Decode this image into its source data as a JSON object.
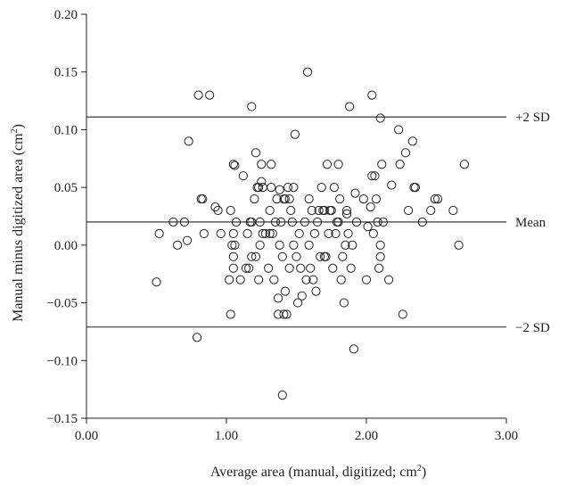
{
  "chart_data": {
    "type": "scatter",
    "xlabel": {
      "pre": "Average area (manual, digitized; cm",
      "sup": "2",
      "post": ")"
    },
    "ylabel": {
      "pre": "Manual minus digitized area (cm",
      "sup": "2",
      "post": ")"
    },
    "xlim": [
      0.0,
      3.0
    ],
    "ylim": [
      -0.15,
      0.2
    ],
    "x_ticks": [
      0.0,
      1.0,
      2.0,
      3.0
    ],
    "x_tick_labels": [
      "0.00",
      "1.00",
      "2.00",
      "3.00"
    ],
    "y_ticks": [
      0.2,
      0.15,
      0.1,
      0.05,
      0.0,
      -0.05,
      -0.1,
      -0.15
    ],
    "y_tick_labels": [
      "0.20",
      "0.15",
      "0.10",
      "0.05",
      "0.00",
      "−0.05",
      "−0.10",
      "−0.15"
    ],
    "grid": false,
    "reference_lines": [
      {
        "label": "+2 SD",
        "y": 0.111
      },
      {
        "label": "Mean",
        "y": 0.02
      },
      {
        "label": "−2 SD",
        "y": -0.071
      }
    ],
    "points": [
      [
        0.5,
        -0.032
      ],
      [
        0.52,
        0.01
      ],
      [
        0.62,
        0.02
      ],
      [
        0.65,
        0.0
      ],
      [
        0.7,
        0.02
      ],
      [
        0.72,
        0.004
      ],
      [
        0.73,
        0.09
      ],
      [
        0.79,
        -0.08
      ],
      [
        0.8,
        0.13
      ],
      [
        0.82,
        0.04
      ],
      [
        0.83,
        0.04
      ],
      [
        0.84,
        0.01
      ],
      [
        0.88,
        0.13
      ],
      [
        0.92,
        0.033
      ],
      [
        0.94,
        0.03
      ],
      [
        0.96,
        0.01
      ],
      [
        1.02,
        -0.03
      ],
      [
        1.03,
        -0.06
      ],
      [
        1.03,
        0.03
      ],
      [
        1.04,
        0.0
      ],
      [
        1.05,
        0.01
      ],
      [
        1.05,
        -0.01
      ],
      [
        1.05,
        -0.02
      ],
      [
        1.05,
        0.07
      ],
      [
        1.06,
        0.0
      ],
      [
        1.06,
        0.069
      ],
      [
        1.07,
        0.02
      ],
      [
        1.1,
        -0.03
      ],
      [
        1.12,
        0.06
      ],
      [
        1.14,
        -0.02
      ],
      [
        1.15,
        0.01
      ],
      [
        1.16,
        -0.02
      ],
      [
        1.17,
        0.02
      ],
      [
        1.18,
        0.02
      ],
      [
        1.18,
        -0.01
      ],
      [
        1.18,
        0.12
      ],
      [
        1.2,
        0.04
      ],
      [
        1.21,
        -0.01
      ],
      [
        1.21,
        0.08
      ],
      [
        1.22,
        0.05
      ],
      [
        1.23,
        0.05
      ],
      [
        1.23,
        -0.03
      ],
      [
        1.24,
        0.02
      ],
      [
        1.24,
        0.0
      ],
      [
        1.25,
        0.07
      ],
      [
        1.25,
        0.055
      ],
      [
        1.26,
        0.05
      ],
      [
        1.26,
        0.01
      ],
      [
        1.28,
        0.01
      ],
      [
        1.3,
        -0.02
      ],
      [
        1.31,
        0.01
      ],
      [
        1.31,
        0.03
      ],
      [
        1.32,
        0.07
      ],
      [
        1.32,
        0.05
      ],
      [
        1.33,
        0.01
      ],
      [
        1.34,
        -0.03
      ],
      [
        1.35,
        0.02
      ],
      [
        1.36,
        0.04
      ],
      [
        1.37,
        -0.06
      ],
      [
        1.37,
        -0.046
      ],
      [
        1.38,
        0.0
      ],
      [
        1.38,
        0.048
      ],
      [
        1.39,
        0.02
      ],
      [
        1.4,
        -0.01
      ],
      [
        1.4,
        -0.13
      ],
      [
        1.41,
        -0.06
      ],
      [
        1.41,
        0.04
      ],
      [
        1.42,
        0.04
      ],
      [
        1.42,
        -0.04
      ],
      [
        1.43,
        -0.06
      ],
      [
        1.44,
        0.05
      ],
      [
        1.45,
        0.04
      ],
      [
        1.45,
        -0.02
      ],
      [
        1.46,
        0.03
      ],
      [
        1.47,
        0.02
      ],
      [
        1.48,
        0.05
      ],
      [
        1.48,
        0.0
      ],
      [
        1.49,
        0.096
      ],
      [
        1.5,
        -0.01
      ],
      [
        1.51,
        -0.05
      ],
      [
        1.52,
        0.01
      ],
      [
        1.53,
        -0.02
      ],
      [
        1.54,
        -0.044
      ],
      [
        1.56,
        0.02
      ],
      [
        1.57,
        -0.03
      ],
      [
        1.58,
        0.15
      ],
      [
        1.59,
        0.0
      ],
      [
        1.59,
        0.04
      ],
      [
        1.6,
        -0.02
      ],
      [
        1.61,
        0.03
      ],
      [
        1.62,
        -0.03
      ],
      [
        1.63,
        0.01
      ],
      [
        1.64,
        -0.04
      ],
      [
        1.65,
        0.02
      ],
      [
        1.66,
        0.03
      ],
      [
        1.67,
        -0.01
      ],
      [
        1.68,
        0.05
      ],
      [
        1.69,
        0.03
      ],
      [
        1.7,
        -0.01
      ],
      [
        1.7,
        0.03
      ],
      [
        1.71,
        -0.01
      ],
      [
        1.72,
        0.07
      ],
      [
        1.73,
        0.01
      ],
      [
        1.74,
        0.03
      ],
      [
        1.75,
        0.03
      ],
      [
        1.76,
        -0.02
      ],
      [
        1.77,
        0.05
      ],
      [
        1.78,
        0.01
      ],
      [
        1.79,
        0.02
      ],
      [
        1.8,
        0.02
      ],
      [
        1.8,
        0.07
      ],
      [
        1.81,
        0.04
      ],
      [
        1.82,
        -0.03
      ],
      [
        1.83,
        -0.01
      ],
      [
        1.84,
        -0.05
      ],
      [
        1.85,
        0.0
      ],
      [
        1.86,
        0.03
      ],
      [
        1.86,
        0.027
      ],
      [
        1.87,
        0.01
      ],
      [
        1.88,
        0.12
      ],
      [
        1.89,
        -0.02
      ],
      [
        1.9,
        0.0
      ],
      [
        1.91,
        -0.09
      ],
      [
        1.92,
        0.045
      ],
      [
        1.93,
        0.02
      ],
      [
        1.98,
        0.04
      ],
      [
        2.0,
        -0.03
      ],
      [
        2.01,
        0.016
      ],
      [
        2.03,
        0.033
      ],
      [
        2.04,
        0.06
      ],
      [
        2.04,
        0.13
      ],
      [
        2.05,
        0.01
      ],
      [
        2.06,
        0.06
      ],
      [
        2.07,
        0.04
      ],
      [
        2.08,
        0.02
      ],
      [
        2.09,
        -0.02
      ],
      [
        2.1,
        -0.01
      ],
      [
        2.1,
        0.0
      ],
      [
        2.1,
        0.11
      ],
      [
        2.11,
        0.07
      ],
      [
        2.12,
        0.02
      ],
      [
        2.16,
        -0.03
      ],
      [
        2.18,
        0.052
      ],
      [
        2.23,
        0.1
      ],
      [
        2.24,
        0.07
      ],
      [
        2.26,
        -0.06
      ],
      [
        2.28,
        0.08
      ],
      [
        2.3,
        0.03
      ],
      [
        2.33,
        0.09
      ],
      [
        2.34,
        0.05
      ],
      [
        2.35,
        0.05
      ],
      [
        2.4,
        0.02
      ],
      [
        2.46,
        0.03
      ],
      [
        2.49,
        0.04
      ],
      [
        2.51,
        0.04
      ],
      [
        2.62,
        0.03
      ],
      [
        2.66,
        0.0
      ],
      [
        2.7,
        0.07
      ]
    ]
  }
}
